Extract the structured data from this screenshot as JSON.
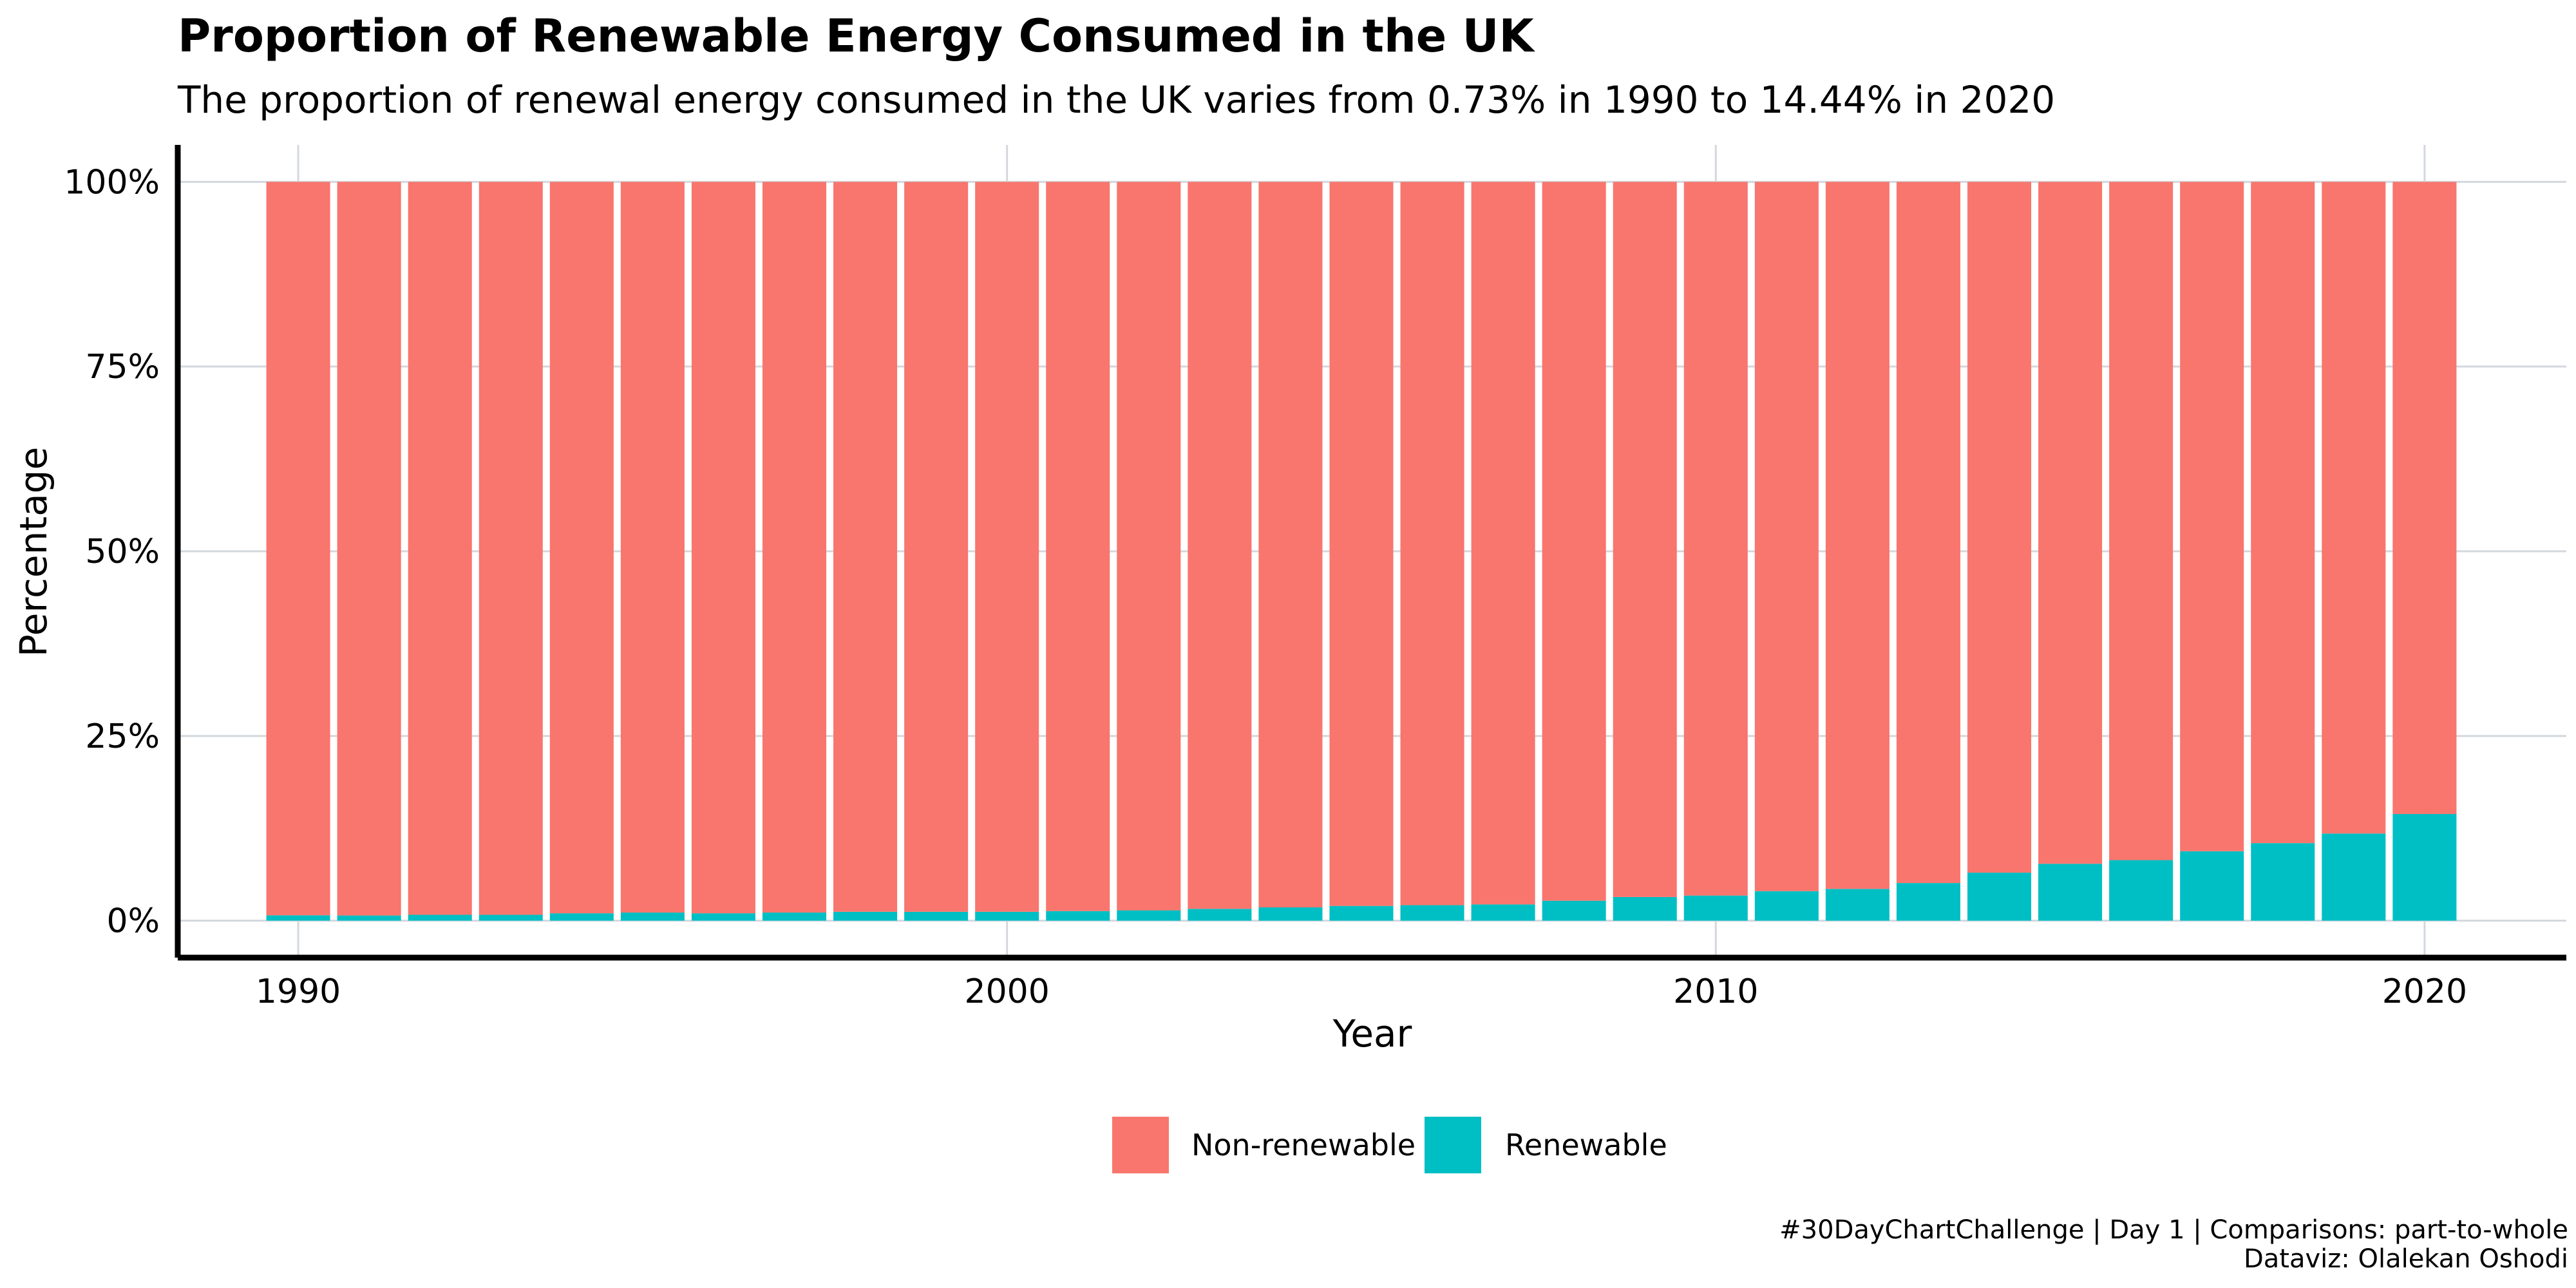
{
  "chart_data": {
    "type": "bar",
    "stacked": "percent",
    "title": "Proportion of Renewable Energy Consumed in the UK",
    "subtitle": "The proportion of renewal energy consumed in the UK varies from 0.73% in 1990 to 14.44% in 2020",
    "xlabel": "Year",
    "ylabel": "Percentage",
    "xlim": [
      1988.3,
      2022
    ],
    "ylim": [
      -5,
      105
    ],
    "x_ticks": [
      1990,
      2000,
      2010,
      2020
    ],
    "y_ticks": [
      {
        "value": 0,
        "label": "0%"
      },
      {
        "value": 25,
        "label": "25%"
      },
      {
        "value": 50,
        "label": "50%"
      },
      {
        "value": 75,
        "label": "75%"
      },
      {
        "value": 100,
        "label": "100%"
      }
    ],
    "grid": true,
    "legend_position": "bottom",
    "categories": [
      1990,
      1991,
      1992,
      1993,
      1994,
      1995,
      1996,
      1997,
      1998,
      1999,
      2000,
      2001,
      2002,
      2003,
      2004,
      2005,
      2006,
      2007,
      2008,
      2009,
      2010,
      2011,
      2012,
      2013,
      2014,
      2015,
      2016,
      2017,
      2018,
      2019,
      2020
    ],
    "series": [
      {
        "name": "Non-renewable",
        "color": "#F8766D",
        "values": [
          99.27,
          99.3,
          99.2,
          99.2,
          99.0,
          98.9,
          99.0,
          98.9,
          98.8,
          98.8,
          98.8,
          98.7,
          98.6,
          98.4,
          98.2,
          98.0,
          97.9,
          97.8,
          97.3,
          96.8,
          96.6,
          96.0,
          95.7,
          94.9,
          93.5,
          92.3,
          91.8,
          90.6,
          89.5,
          88.2,
          85.56
        ]
      },
      {
        "name": "Renewable",
        "color": "#00BFC4",
        "values": [
          0.73,
          0.7,
          0.8,
          0.8,
          1.0,
          1.1,
          1.0,
          1.1,
          1.2,
          1.2,
          1.2,
          1.3,
          1.4,
          1.6,
          1.8,
          2.0,
          2.1,
          2.2,
          2.7,
          3.2,
          3.4,
          4.0,
          4.3,
          5.1,
          6.5,
          7.7,
          8.2,
          9.4,
          10.5,
          11.8,
          14.44
        ]
      }
    ],
    "caption_lines": [
      "#30DayChartChallenge | Day 1 | Comparisons: part-to-whole",
      "Dataviz: Olalekan Oshodi"
    ]
  },
  "colors": {
    "background": "#ffffff",
    "grid": "#d3d8de",
    "axis": "#000000"
  }
}
